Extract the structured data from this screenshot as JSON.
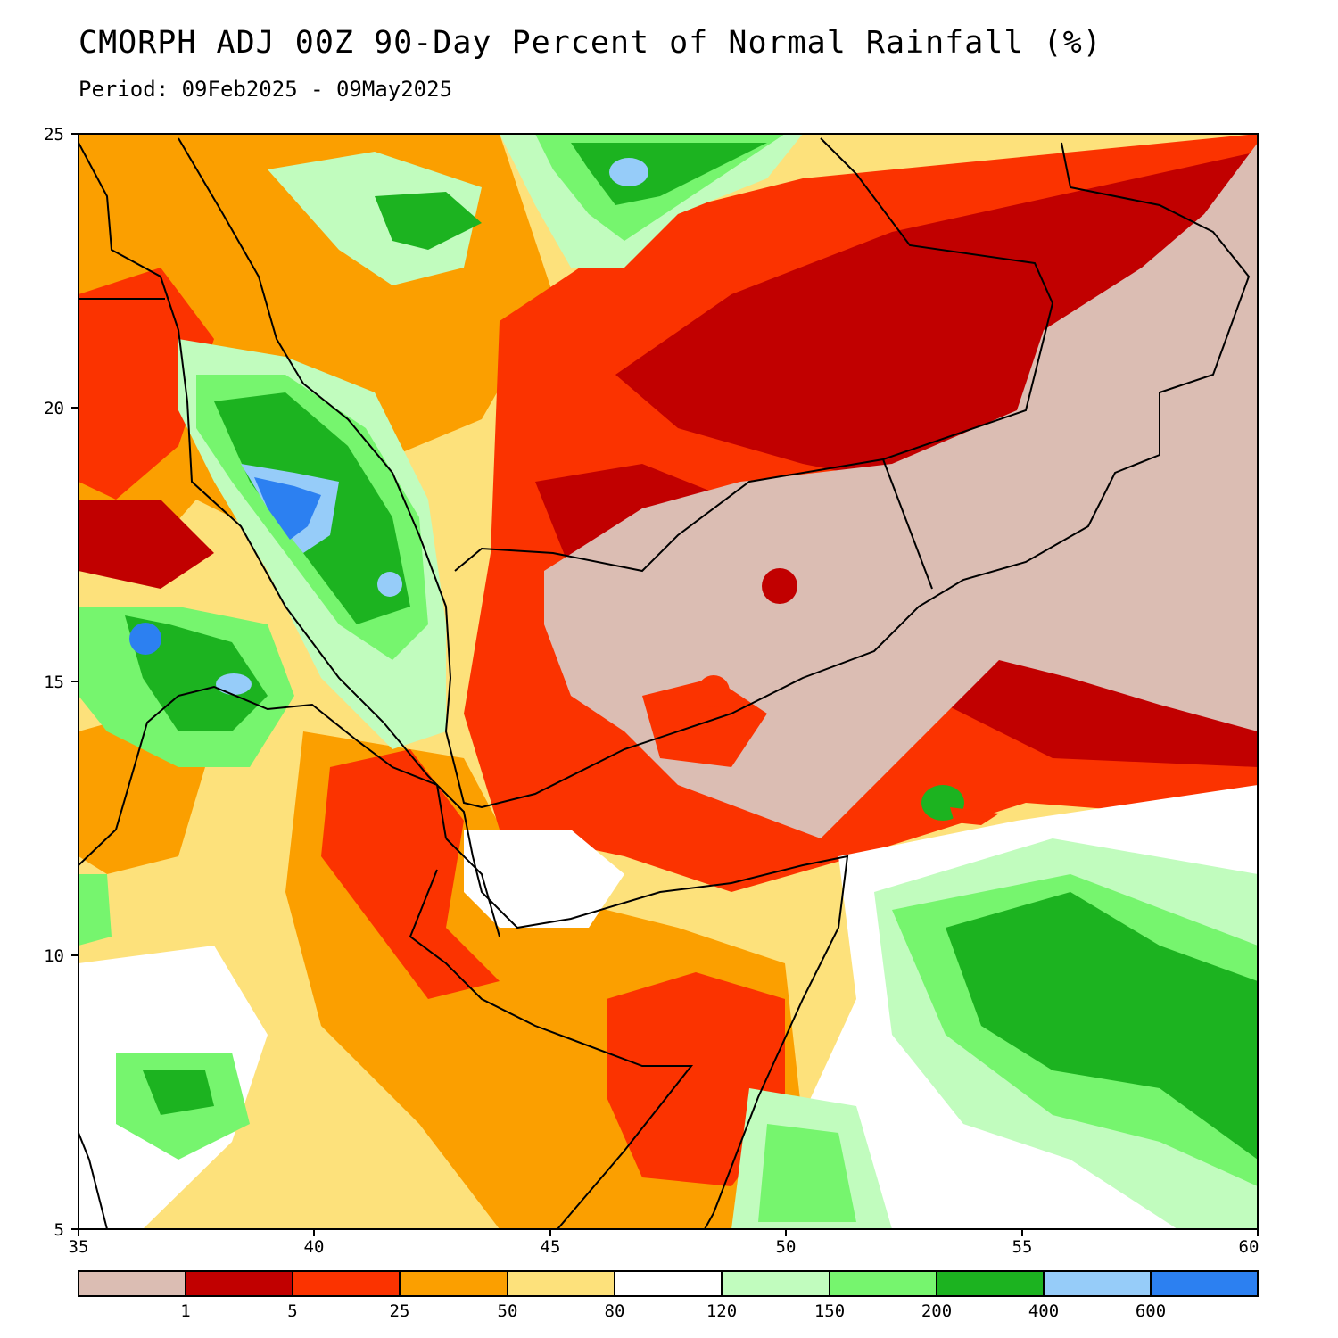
{
  "header": {
    "title": "CMORPH ADJ 00Z 90-Day Percent of Normal Rainfall (%)",
    "period": "Period: 09Feb2025 - 09May2025"
  },
  "map": {
    "lon_range": [
      35,
      60
    ],
    "lat_range": [
      5,
      25
    ],
    "lon_ticks": [
      "35",
      "40",
      "45",
      "50",
      "55",
      "60"
    ],
    "lat_ticks": [
      "5",
      "10",
      "15",
      "20",
      "25"
    ]
  },
  "legend": {
    "colors": [
      "#dbbdb3",
      "#c10000",
      "#fb3300",
      "#fb9f00",
      "#fde17b",
      "#ffffff",
      "#c1fcbe",
      "#76f56e",
      "#1cb320",
      "#96ccf9",
      "#2c80f1"
    ],
    "labels": [
      "1",
      "5",
      "25",
      "50",
      "80",
      "120",
      "150",
      "200",
      "400",
      "600"
    ]
  }
}
